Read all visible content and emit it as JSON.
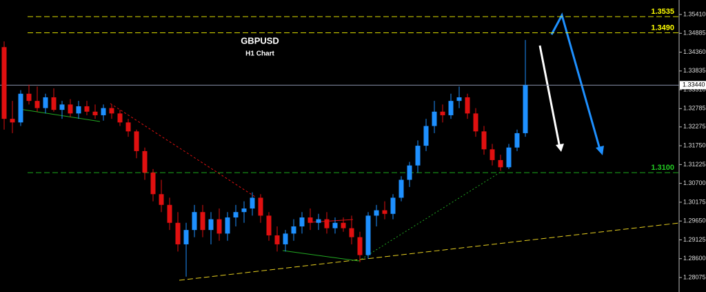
{
  "chart_data": {
    "type": "candlestick",
    "title": "GBPUSD",
    "subtitle": "H1 Chart",
    "up_color": "#1e90ff",
    "down_color": "#e01010",
    "ylim": [
      1.27671,
      1.35814
    ],
    "yticks": [
      {
        "value": 1.3541,
        "label": "1.35410"
      },
      {
        "value": 1.34885,
        "label": "1.34885"
      },
      {
        "value": 1.3436,
        "label": "1.34360"
      },
      {
        "value": 1.33835,
        "label": "1.33835"
      },
      {
        "value": 1.3331,
        "label": "1.33310"
      },
      {
        "value": 1.32785,
        "label": "1.32785"
      },
      {
        "value": 1.32275,
        "label": "1.32275"
      },
      {
        "value": 1.3175,
        "label": "1.31750"
      },
      {
        "value": 1.31225,
        "label": "1.31225"
      },
      {
        "value": 1.307,
        "label": "1.30700"
      },
      {
        "value": 1.30175,
        "label": "1.30175"
      },
      {
        "value": 1.2965,
        "label": "1.29650"
      },
      {
        "value": 1.29125,
        "label": "1.29125"
      },
      {
        "value": 1.286,
        "label": "1.28600"
      },
      {
        "value": 1.28075,
        "label": "1.28075"
      }
    ],
    "last_price": {
      "value": 1.3344,
      "label": "1.33440"
    },
    "levels": [
      {
        "value": 1.3535,
        "label": "1.3535",
        "color": "#ffff00"
      },
      {
        "value": 1.349,
        "label": "1.3490",
        "color": "#ffff00"
      },
      {
        "value": 1.31,
        "label": "1.3100",
        "color": "#22cc22"
      }
    ],
    "candles": {
      "open": [
        1.345,
        1.325,
        1.324,
        1.332,
        1.33,
        1.328,
        1.331,
        1.3275,
        1.329,
        1.3265,
        1.3285,
        1.327,
        1.326,
        1.328,
        1.3265,
        1.324,
        1.3215,
        1.316,
        1.31,
        1.304,
        1.301,
        1.296,
        1.29,
        1.294,
        1.299,
        1.294,
        1.297,
        1.293,
        1.2975,
        1.299,
        1.3,
        1.303,
        1.298,
        1.2925,
        1.29,
        1.293,
        1.295,
        1.2975,
        1.296,
        1.297,
        1.2945,
        1.296,
        1.2945,
        1.292,
        1.287,
        1.298,
        1.2995,
        1.2985,
        1.303,
        1.308,
        1.312,
        1.3175,
        1.323,
        1.327,
        1.326,
        1.33,
        1.331,
        1.3265,
        1.3215,
        1.3165,
        1.3135,
        1.3115,
        1.317,
        1.321
      ],
      "high": [
        1.3466,
        1.33,
        1.333,
        1.3345,
        1.334,
        1.332,
        1.3335,
        1.33,
        1.3305,
        1.33,
        1.33,
        1.329,
        1.329,
        1.329,
        1.3275,
        1.325,
        1.322,
        1.317,
        1.311,
        1.308,
        1.303,
        1.299,
        1.296,
        1.301,
        1.301,
        1.299,
        1.3,
        1.299,
        1.301,
        1.302,
        1.3045,
        1.304,
        1.299,
        1.295,
        1.294,
        1.297,
        1.299,
        1.3,
        1.2985,
        1.299,
        1.2975,
        1.2975,
        1.298,
        1.2935,
        1.299,
        1.301,
        1.302,
        1.304,
        1.309,
        1.313,
        1.319,
        1.325,
        1.33,
        1.329,
        1.332,
        1.334,
        1.332,
        1.328,
        1.323,
        1.318,
        1.315,
        1.318,
        1.322,
        1.347
      ],
      "low": [
        1.322,
        1.321,
        1.323,
        1.329,
        1.327,
        1.3265,
        1.327,
        1.325,
        1.3255,
        1.325,
        1.326,
        1.325,
        1.3245,
        1.325,
        1.323,
        1.32,
        1.314,
        1.308,
        1.302,
        1.299,
        1.294,
        1.288,
        1.281,
        1.292,
        1.292,
        1.29,
        1.291,
        1.291,
        1.295,
        1.296,
        1.298,
        1.296,
        1.291,
        1.288,
        1.288,
        1.291,
        1.293,
        1.294,
        1.294,
        1.293,
        1.293,
        1.2935,
        1.29,
        1.285,
        1.286,
        1.295,
        1.297,
        1.297,
        1.302,
        1.306,
        1.31,
        1.316,
        1.321,
        1.324,
        1.325,
        1.328,
        1.325,
        1.32,
        1.315,
        1.312,
        1.3105,
        1.311,
        1.316,
        1.32
      ],
      "close": [
        1.325,
        1.324,
        1.332,
        1.33,
        1.328,
        1.331,
        1.3275,
        1.329,
        1.3265,
        1.3285,
        1.327,
        1.326,
        1.328,
        1.3265,
        1.324,
        1.3215,
        1.316,
        1.31,
        1.304,
        1.301,
        1.296,
        1.29,
        1.294,
        1.299,
        1.294,
        1.297,
        1.293,
        1.2975,
        1.299,
        1.3,
        1.303,
        1.298,
        1.2925,
        1.29,
        1.293,
        1.295,
        1.2975,
        1.296,
        1.297,
        1.2945,
        1.296,
        1.2945,
        1.292,
        1.287,
        1.298,
        1.2995,
        1.2985,
        1.303,
        1.308,
        1.312,
        1.3175,
        1.323,
        1.327,
        1.326,
        1.33,
        1.331,
        1.3265,
        1.3215,
        1.3165,
        1.3135,
        1.3115,
        1.317,
        1.321,
        1.3344
      ]
    }
  }
}
